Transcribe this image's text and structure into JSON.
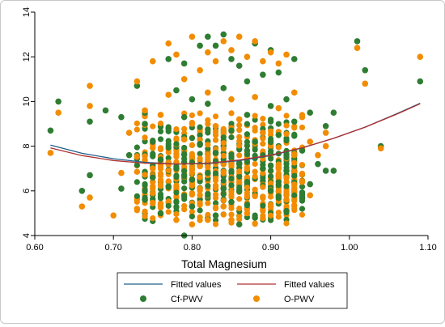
{
  "chart_data": {
    "type": "scatter",
    "title": "",
    "xlabel": "Total Magnesium",
    "ylabel": "",
    "xlim": [
      0.6,
      1.1
    ],
    "ylim": [
      4,
      14
    ],
    "x_ticks": [
      "0.60",
      "0.70",
      "0.80",
      "0.90",
      "1.00",
      "1.10"
    ],
    "y_ticks": [
      "4",
      "6",
      "8",
      "10",
      "12",
      "14"
    ],
    "grid": false,
    "legend_position": "bottom",
    "colors": {
      "cf_pwv": "#2e7d32",
      "o_pwv": "#f28c00",
      "fit_cf": "#1f5f8b",
      "fit_o": "#b03030"
    },
    "legend": [
      {
        "label": "Fitted values",
        "kind": "line",
        "series": "fit_cf"
      },
      {
        "label": "Fitted values",
        "kind": "line",
        "series": "fit_o"
      },
      {
        "label": "Cf-PWV",
        "kind": "marker",
        "series": "cf_pwv"
      },
      {
        "label": "O-PWV",
        "kind": "marker",
        "series": "o_pwv"
      }
    ],
    "series": [
      {
        "name": "Cf-PWV",
        "kind": "scatter",
        "color_key": "cf_pwv",
        "points": [
          [
            0.62,
            8.7
          ],
          [
            0.63,
            10.0
          ],
          [
            0.66,
            6.0
          ],
          [
            0.67,
            9.1
          ],
          [
            0.67,
            6.7
          ],
          [
            0.69,
            9.6
          ],
          [
            0.71,
            9.3
          ],
          [
            0.71,
            6.1
          ],
          [
            0.72,
            7.6
          ],
          [
            0.73,
            10.7
          ],
          [
            0.74,
            9.0
          ],
          [
            0.74,
            5.6
          ],
          [
            0.75,
            8.2
          ],
          [
            0.75,
            6.6
          ],
          [
            0.76,
            7.4
          ],
          [
            0.76,
            5.0
          ],
          [
            0.77,
            11.9
          ],
          [
            0.77,
            8.8
          ],
          [
            0.77,
            6.2
          ],
          [
            0.78,
            10.5
          ],
          [
            0.78,
            7.0
          ],
          [
            0.79,
            11.7
          ],
          [
            0.79,
            4.0
          ],
          [
            0.79,
            9.3
          ],
          [
            0.8,
            10.1
          ],
          [
            0.8,
            6.5
          ],
          [
            0.8,
            5.3
          ],
          [
            0.81,
            12.5
          ],
          [
            0.81,
            8.1
          ],
          [
            0.82,
            12.9
          ],
          [
            0.82,
            9.9
          ],
          [
            0.82,
            6.8
          ],
          [
            0.83,
            12.5
          ],
          [
            0.83,
            4.9
          ],
          [
            0.83,
            7.7
          ],
          [
            0.84,
            13.0
          ],
          [
            0.84,
            10.6
          ],
          [
            0.84,
            6.1
          ],
          [
            0.85,
            11.9
          ],
          [
            0.85,
            8.7
          ],
          [
            0.85,
            5.5
          ],
          [
            0.86,
            11.6
          ],
          [
            0.86,
            7.2
          ],
          [
            0.86,
            4.5
          ],
          [
            0.87,
            10.9
          ],
          [
            0.87,
            9.4
          ],
          [
            0.87,
            6.4
          ],
          [
            0.88,
            12.6
          ],
          [
            0.88,
            8.2
          ],
          [
            0.88,
            4.8
          ],
          [
            0.89,
            11.2
          ],
          [
            0.89,
            7.0
          ],
          [
            0.9,
            12.3
          ],
          [
            0.9,
            9.8
          ],
          [
            0.9,
            6.0
          ],
          [
            0.91,
            11.3
          ],
          [
            0.91,
            8.5
          ],
          [
            0.92,
            10.1
          ],
          [
            0.92,
            6.9
          ],
          [
            0.92,
            5.1
          ],
          [
            0.93,
            11.9
          ],
          [
            0.93,
            9.1
          ],
          [
            0.94,
            7.8
          ],
          [
            0.94,
            5.7
          ],
          [
            0.95,
            9.5
          ],
          [
            0.95,
            6.3
          ],
          [
            0.96,
            7.2
          ],
          [
            0.97,
            6.9
          ],
          [
            0.97,
            8.9
          ],
          [
            0.98,
            9.5
          ],
          [
            0.98,
            6.9
          ],
          [
            1.01,
            12.7
          ],
          [
            1.02,
            11.4
          ],
          [
            1.04,
            8.0
          ],
          [
            1.09,
            10.9
          ]
        ]
      },
      {
        "name": "O-PWV",
        "kind": "scatter",
        "color_key": "o_pwv",
        "points": [
          [
            0.62,
            7.7
          ],
          [
            0.63,
            9.5
          ],
          [
            0.66,
            5.3
          ],
          [
            0.67,
            10.7
          ],
          [
            0.67,
            5.7
          ],
          [
            0.67,
            9.8
          ],
          [
            0.7,
            4.9
          ],
          [
            0.71,
            6.8
          ],
          [
            0.72,
            8.6
          ],
          [
            0.73,
            10.9
          ],
          [
            0.73,
            5.2
          ],
          [
            0.74,
            9.6
          ],
          [
            0.75,
            11.8
          ],
          [
            0.75,
            7.0
          ],
          [
            0.76,
            9.4
          ],
          [
            0.76,
            5.4
          ],
          [
            0.77,
            12.6
          ],
          [
            0.77,
            10.3
          ],
          [
            0.78,
            12.1
          ],
          [
            0.78,
            4.7
          ],
          [
            0.79,
            11.0
          ],
          [
            0.79,
            8.3
          ],
          [
            0.8,
            12.9
          ],
          [
            0.8,
            9.0
          ],
          [
            0.8,
            4.5
          ],
          [
            0.81,
            11.4
          ],
          [
            0.81,
            7.1
          ],
          [
            0.82,
            12.2
          ],
          [
            0.82,
            10.4
          ],
          [
            0.82,
            4.7
          ],
          [
            0.83,
            11.8
          ],
          [
            0.83,
            8.9
          ],
          [
            0.84,
            12.7
          ],
          [
            0.84,
            5.3
          ],
          [
            0.85,
            12.3
          ],
          [
            0.85,
            10.1
          ],
          [
            0.85,
            4.7
          ],
          [
            0.86,
            12.9
          ],
          [
            0.86,
            9.2
          ],
          [
            0.87,
            12.0
          ],
          [
            0.87,
            5.0
          ],
          [
            0.88,
            12.7
          ],
          [
            0.88,
            10.2
          ],
          [
            0.89,
            11.8
          ],
          [
            0.89,
            8.6
          ],
          [
            0.9,
            12.2
          ],
          [
            0.9,
            5.3
          ],
          [
            0.91,
            11.7
          ],
          [
            0.91,
            9.7
          ],
          [
            0.92,
            12.1
          ],
          [
            0.92,
            5.6
          ],
          [
            0.93,
            10.4
          ],
          [
            0.93,
            7.6
          ],
          [
            0.94,
            9.3
          ],
          [
            0.94,
            6.4
          ],
          [
            0.95,
            8.2
          ],
          [
            0.95,
            5.8
          ],
          [
            0.96,
            7.6
          ],
          [
            0.97,
            8.0
          ],
          [
            0.97,
            8.6
          ],
          [
            1.01,
            12.4
          ],
          [
            1.02,
            10.8
          ],
          [
            1.04,
            7.9
          ],
          [
            1.09,
            12.0
          ]
        ]
      },
      {
        "name": "Fitted values",
        "kind": "line",
        "color_key": "fit_cf",
        "x": [
          0.62,
          0.66,
          0.7,
          0.74,
          0.78,
          0.82,
          0.86,
          0.9,
          0.94,
          0.98,
          1.02,
          1.06,
          1.09
        ],
        "y": [
          8.05,
          7.68,
          7.44,
          7.28,
          7.2,
          7.22,
          7.35,
          7.58,
          7.92,
          8.35,
          8.85,
          9.45,
          9.92
        ]
      },
      {
        "name": "Fitted values",
        "kind": "line",
        "color_key": "fit_o",
        "x": [
          0.62,
          0.66,
          0.7,
          0.74,
          0.78,
          0.82,
          0.86,
          0.9,
          0.94,
          0.98,
          1.02,
          1.06,
          1.09
        ],
        "y": [
          7.92,
          7.58,
          7.36,
          7.24,
          7.2,
          7.24,
          7.38,
          7.6,
          7.93,
          8.35,
          8.85,
          9.43,
          9.9
        ]
      }
    ],
    "cluster_note_density": {
      "x_range": [
        0.73,
        0.94
      ],
      "y_range": [
        4.5,
        9.5
      ]
    }
  }
}
